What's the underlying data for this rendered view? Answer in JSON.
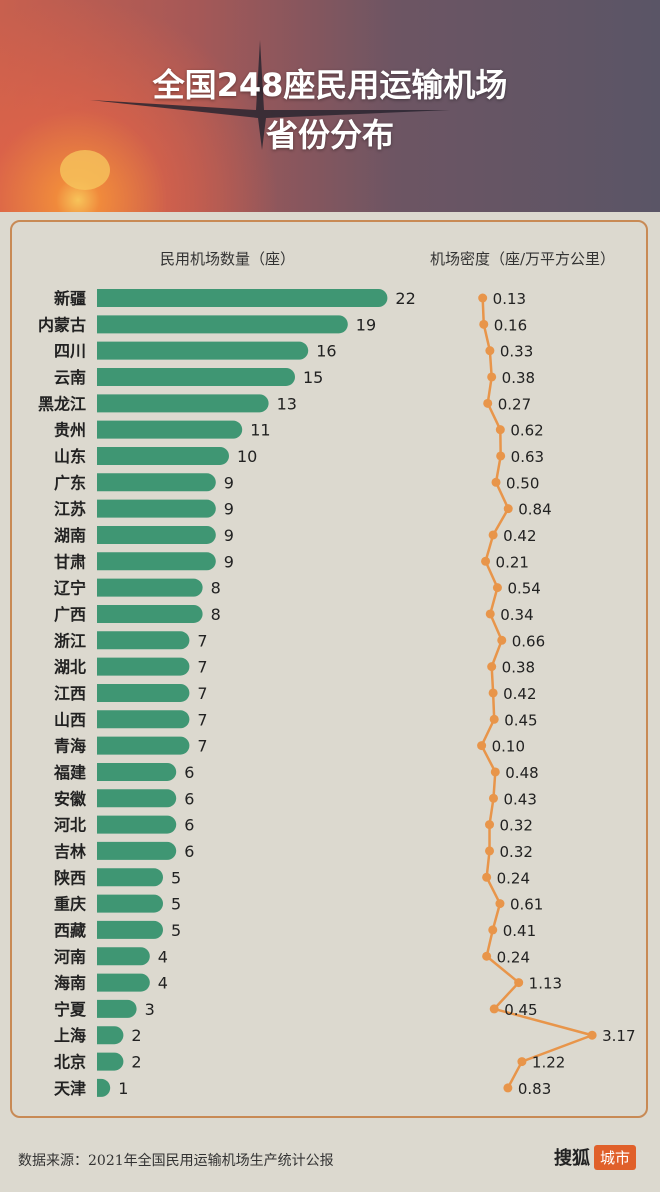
{
  "header": {
    "title_line1": "全国248座民用运输机场",
    "title_line2": "省份分布"
  },
  "footer": {
    "source": "数据来源：2021年全国民用运输机场生产统计公报",
    "logo_main": "搜狐",
    "logo_tag": "城市"
  },
  "colors": {
    "bar": "#3f9673",
    "line": "#e8954a",
    "border": "#c88a55",
    "background": "#dcd9cf"
  },
  "chart_data": {
    "type": "bar+line",
    "bar_title": "民用机场数量（座）",
    "line_title": "机场密度（座/万平方公里）",
    "categories": [
      "新疆",
      "内蒙古",
      "四川",
      "云南",
      "黑龙江",
      "贵州",
      "山东",
      "广东",
      "江苏",
      "湖南",
      "甘肃",
      "辽宁",
      "广西",
      "浙江",
      "湖北",
      "江西",
      "山西",
      "青海",
      "福建",
      "安徽",
      "河北",
      "吉林",
      "陕西",
      "重庆",
      "西藏",
      "河南",
      "海南",
      "宁夏",
      "上海",
      "北京",
      "天津"
    ],
    "series": [
      {
        "name": "民用机场数量（座）",
        "type": "bar",
        "values": [
          22,
          19,
          16,
          15,
          13,
          11,
          10,
          9,
          9,
          9,
          9,
          8,
          8,
          7,
          7,
          7,
          7,
          7,
          6,
          6,
          6,
          6,
          5,
          5,
          5,
          4,
          4,
          3,
          2,
          2,
          1
        ]
      },
      {
        "name": "机场密度（座/万平方公里）",
        "type": "line",
        "values": [
          "0.13",
          "0.16",
          "0.33",
          "0.38",
          "0.27",
          "0.62",
          "0.63",
          "0.50",
          "0.84",
          "0.42",
          "0.21",
          "0.54",
          "0.34",
          "0.66",
          "0.38",
          "0.42",
          "0.45",
          "0.10",
          "0.48",
          "0.43",
          "0.32",
          "0.32",
          "0.24",
          "0.61",
          "0.41",
          "0.24",
          "1.13",
          "0.45",
          "3.17",
          "1.22",
          "0.83"
        ]
      }
    ]
  }
}
